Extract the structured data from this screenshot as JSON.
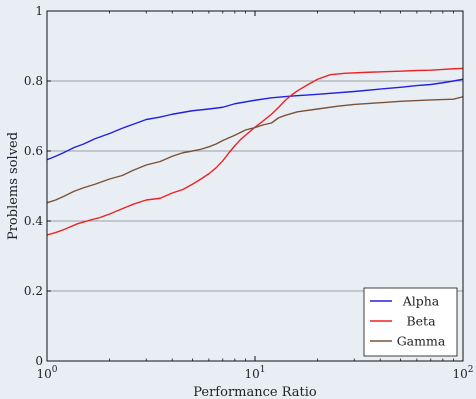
{
  "chart_data": {
    "type": "line",
    "xlabel": "Performance Ratio",
    "ylabel": "Problems solved",
    "x_scale": "log",
    "xlim": [
      1,
      100
    ],
    "ylim": [
      0,
      1
    ],
    "x_ticks": [
      {
        "value": 1,
        "base": "10",
        "exp": "0"
      },
      {
        "value": 10,
        "base": "10",
        "exp": "1"
      },
      {
        "value": 100,
        "base": "10",
        "exp": "2"
      }
    ],
    "y_ticks": [
      {
        "value": 0,
        "label": "0"
      },
      {
        "value": 0.2,
        "label": "0.2"
      },
      {
        "value": 0.4,
        "label": "0.4"
      },
      {
        "value": 0.6,
        "label": "0.6"
      },
      {
        "value": 0.8,
        "label": "0.8"
      },
      {
        "value": 1,
        "label": "1"
      }
    ],
    "grid": "horizontal",
    "legend_position": "bottom-right",
    "series": [
      {
        "name": "Alpha",
        "color": "#2222dd",
        "points": [
          [
            1,
            0.575
          ],
          [
            1.1,
            0.585
          ],
          [
            1.2,
            0.595
          ],
          [
            1.35,
            0.61
          ],
          [
            1.5,
            0.62
          ],
          [
            1.7,
            0.635
          ],
          [
            2,
            0.65
          ],
          [
            2.3,
            0.665
          ],
          [
            2.7,
            0.68
          ],
          [
            3,
            0.69
          ],
          [
            3.5,
            0.697
          ],
          [
            4,
            0.705
          ],
          [
            5,
            0.715
          ],
          [
            6,
            0.72
          ],
          [
            7,
            0.725
          ],
          [
            8,
            0.735
          ],
          [
            10,
            0.745
          ],
          [
            12,
            0.752
          ],
          [
            15,
            0.757
          ],
          [
            20,
            0.762
          ],
          [
            30,
            0.77
          ],
          [
            40,
            0.777
          ],
          [
            50,
            0.782
          ],
          [
            60,
            0.787
          ],
          [
            70,
            0.79
          ],
          [
            80,
            0.795
          ],
          [
            90,
            0.8
          ],
          [
            100,
            0.805
          ]
        ]
      },
      {
        "name": "Beta",
        "color": "#ee2222",
        "points": [
          [
            1,
            0.36
          ],
          [
            1.1,
            0.367
          ],
          [
            1.2,
            0.375
          ],
          [
            1.4,
            0.392
          ],
          [
            1.6,
            0.402
          ],
          [
            1.8,
            0.41
          ],
          [
            2,
            0.42
          ],
          [
            2.3,
            0.435
          ],
          [
            2.6,
            0.448
          ],
          [
            3,
            0.46
          ],
          [
            3.5,
            0.465
          ],
          [
            4,
            0.48
          ],
          [
            4.5,
            0.49
          ],
          [
            5,
            0.505
          ],
          [
            5.5,
            0.52
          ],
          [
            6,
            0.535
          ],
          [
            6.5,
            0.552
          ],
          [
            7,
            0.572
          ],
          [
            7.5,
            0.595
          ],
          [
            8,
            0.615
          ],
          [
            8.5,
            0.632
          ],
          [
            9,
            0.645
          ],
          [
            10,
            0.668
          ],
          [
            11,
            0.687
          ],
          [
            12,
            0.705
          ],
          [
            13,
            0.725
          ],
          [
            14,
            0.745
          ],
          [
            15,
            0.76
          ],
          [
            16,
            0.772
          ],
          [
            18,
            0.79
          ],
          [
            20,
            0.805
          ],
          [
            23,
            0.818
          ],
          [
            27,
            0.822
          ],
          [
            35,
            0.825
          ],
          [
            50,
            0.828
          ],
          [
            60,
            0.83
          ],
          [
            70,
            0.831
          ],
          [
            80,
            0.833
          ],
          [
            90,
            0.835
          ],
          [
            100,
            0.836
          ]
        ]
      },
      {
        "name": "Gamma",
        "color": "#7a5238",
        "points": [
          [
            1,
            0.452
          ],
          [
            1.1,
            0.46
          ],
          [
            1.2,
            0.47
          ],
          [
            1.35,
            0.485
          ],
          [
            1.5,
            0.495
          ],
          [
            1.7,
            0.505
          ],
          [
            2,
            0.52
          ],
          [
            2.3,
            0.53
          ],
          [
            2.6,
            0.545
          ],
          [
            3,
            0.56
          ],
          [
            3.5,
            0.57
          ],
          [
            4,
            0.585
          ],
          [
            4.5,
            0.595
          ],
          [
            5,
            0.6
          ],
          [
            5.5,
            0.605
          ],
          [
            6,
            0.612
          ],
          [
            6.5,
            0.62
          ],
          [
            7,
            0.63
          ],
          [
            8,
            0.645
          ],
          [
            9,
            0.66
          ],
          [
            10,
            0.667
          ],
          [
            11,
            0.675
          ],
          [
            12,
            0.68
          ],
          [
            13,
            0.695
          ],
          [
            14,
            0.702
          ],
          [
            16,
            0.712
          ],
          [
            20,
            0.72
          ],
          [
            25,
            0.728
          ],
          [
            30,
            0.733
          ],
          [
            40,
            0.738
          ],
          [
            50,
            0.742
          ],
          [
            70,
            0.746
          ],
          [
            90,
            0.748
          ],
          [
            100,
            0.755
          ]
        ]
      }
    ]
  }
}
